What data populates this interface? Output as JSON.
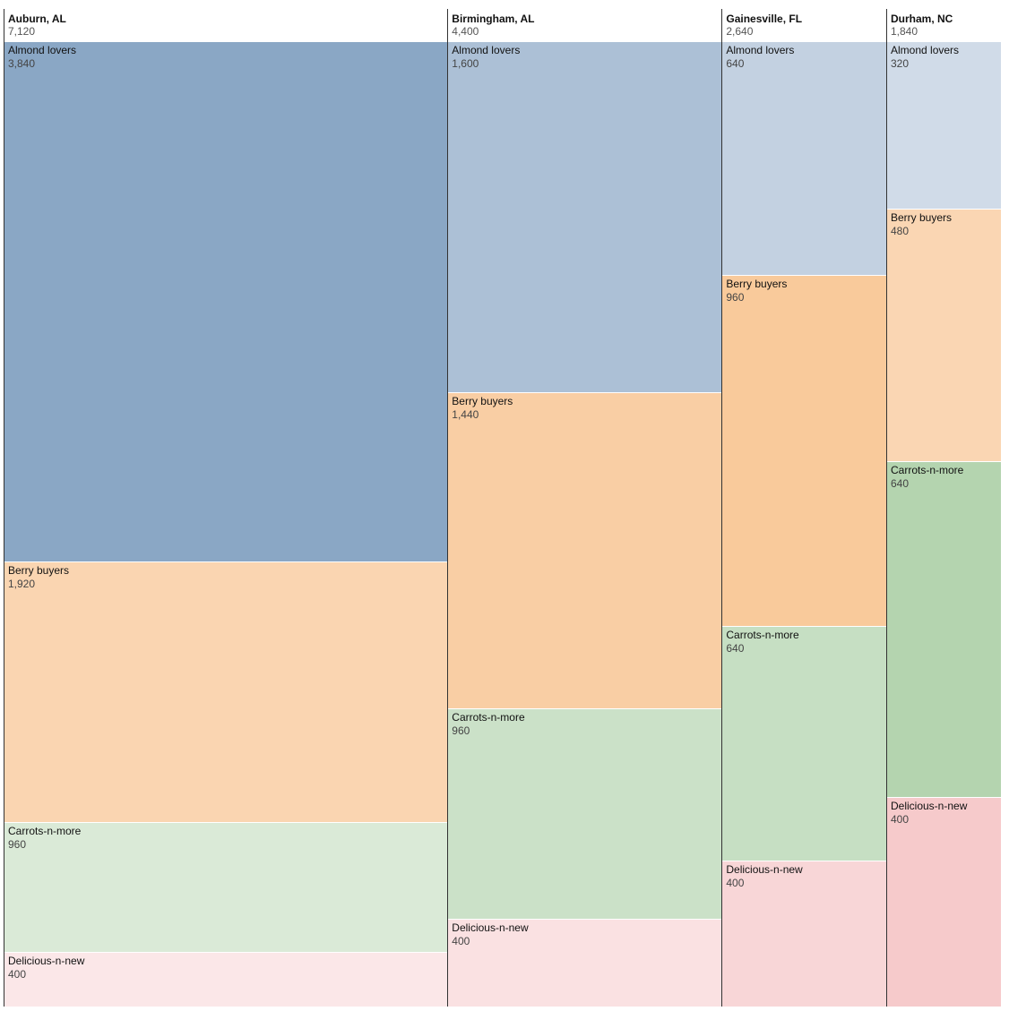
{
  "chart_data": {
    "type": "mosaic",
    "categories": [
      "Almond lovers",
      "Berry buyers",
      "Carrots-n-more",
      "Delicious-n-new"
    ],
    "category_colors": {
      "Almond lovers": "#4e79a7",
      "Berry buyers": "#f28e2b",
      "Carrots-n-more": "#59a14f",
      "Delicious-n-new": "#e15759"
    },
    "groups": [
      {
        "name": "Auburn, AL",
        "total_label": "7,120",
        "total": 7120,
        "segments": [
          {
            "name": "Almond lovers",
            "value": 3840,
            "label": "3,840"
          },
          {
            "name": "Berry buyers",
            "value": 1920,
            "label": "1,920"
          },
          {
            "name": "Carrots-n-more",
            "value": 960,
            "label": "960"
          },
          {
            "name": "Delicious-n-new",
            "value": 400,
            "label": "400"
          }
        ]
      },
      {
        "name": "Birmingham, AL",
        "total_label": "4,400",
        "total": 4400,
        "segments": [
          {
            "name": "Almond lovers",
            "value": 1600,
            "label": "1,600"
          },
          {
            "name": "Berry buyers",
            "value": 1440,
            "label": "1,440"
          },
          {
            "name": "Carrots-n-more",
            "value": 960,
            "label": "960"
          },
          {
            "name": "Delicious-n-new",
            "value": 400,
            "label": "400"
          }
        ]
      },
      {
        "name": "Gainesville, FL",
        "total_label": "2,640",
        "total": 2640,
        "segments": [
          {
            "name": "Almond lovers",
            "value": 640,
            "label": "640"
          },
          {
            "name": "Berry buyers",
            "value": 960,
            "label": "960"
          },
          {
            "name": "Carrots-n-more",
            "value": 640,
            "label": "640"
          },
          {
            "name": "Delicious-n-new",
            "value": 400,
            "label": "400"
          }
        ]
      },
      {
        "name": "Durham, NC",
        "total_label": "1,840",
        "total": 1840,
        "segments": [
          {
            "name": "Almond lovers",
            "value": 320,
            "label": "320"
          },
          {
            "name": "Berry buyers",
            "value": 480,
            "label": "480"
          },
          {
            "name": "Carrots-n-more",
            "value": 640,
            "label": "640"
          },
          {
            "name": "Delicious-n-new",
            "value": 400,
            "label": "400"
          }
        ]
      }
    ]
  }
}
